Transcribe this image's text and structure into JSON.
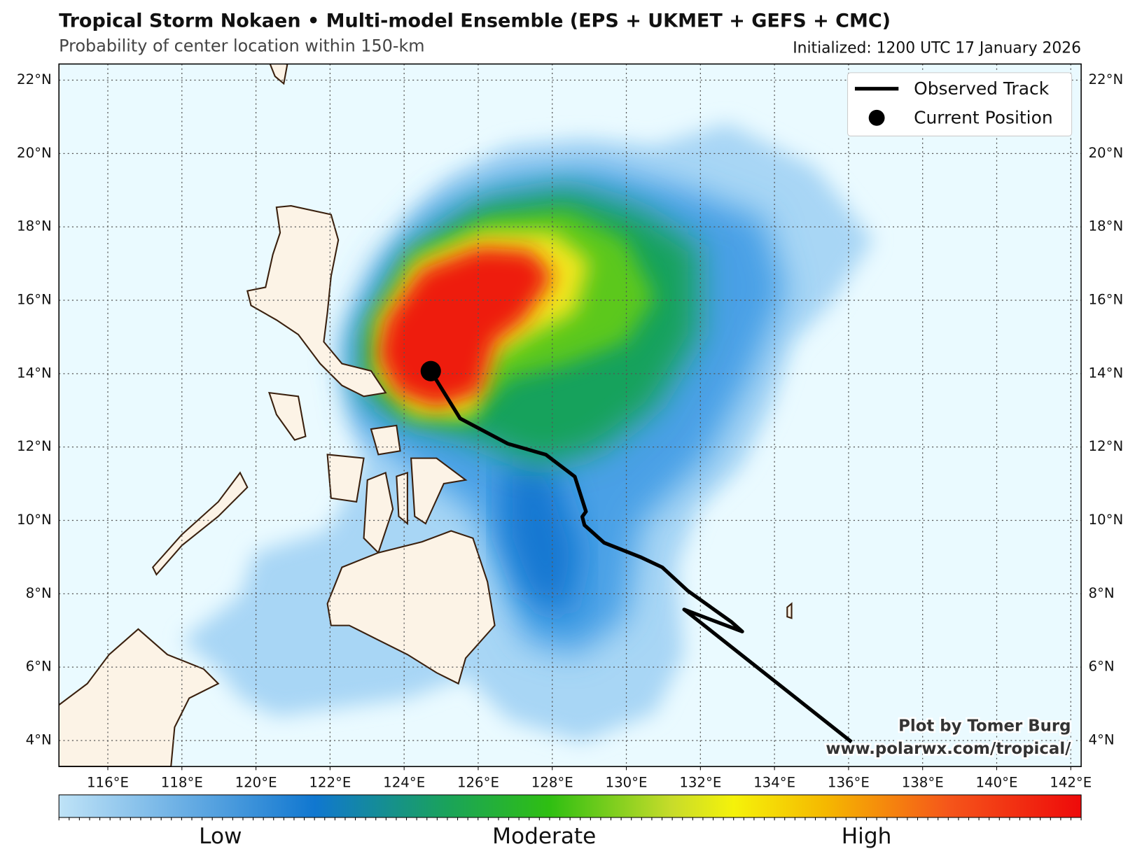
{
  "chart_data": {
    "type": "map",
    "title": "Tropical Storm Nokaen • Multi-model Ensemble (EPS + UKMET + GEFS + CMC)",
    "subtitle": "Probability of center location within 150-km",
    "initialized": "Initialized: 1200 UTC 17 January 2026",
    "xlim": [
      114.68,
      142.28
    ],
    "ylim": [
      3.29,
      22.44
    ],
    "grid": true,
    "xticks": [
      {
        "value": 116,
        "label": "116°E"
      },
      {
        "value": 118,
        "label": "118°E"
      },
      {
        "value": 120,
        "label": "120°E"
      },
      {
        "value": 122,
        "label": "122°E"
      },
      {
        "value": 124,
        "label": "124°E"
      },
      {
        "value": 126,
        "label": "126°E"
      },
      {
        "value": 128,
        "label": "128°E"
      },
      {
        "value": 130,
        "label": "130°E"
      },
      {
        "value": 132,
        "label": "132°E"
      },
      {
        "value": 134,
        "label": "134°E"
      },
      {
        "value": 136,
        "label": "136°E"
      },
      {
        "value": 138,
        "label": "138°E"
      },
      {
        "value": 140,
        "label": "140°E"
      },
      {
        "value": 142,
        "label": "142°E"
      }
    ],
    "yticks": [
      {
        "value": 4,
        "label": "4°N"
      },
      {
        "value": 6,
        "label": "6°N"
      },
      {
        "value": 8,
        "label": "8°N"
      },
      {
        "value": 10,
        "label": "10°N"
      },
      {
        "value": 12,
        "label": "12°N"
      },
      {
        "value": 14,
        "label": "14°N"
      },
      {
        "value": 16,
        "label": "16°N"
      },
      {
        "value": 18,
        "label": "18°N"
      },
      {
        "value": 20,
        "label": "20°N"
      },
      {
        "value": 22,
        "label": "22°N"
      }
    ],
    "series": [
      {
        "name": "Observed Track",
        "color": "#000000",
        "x": [
          136.08,
          131.56,
          133.13,
          132.84,
          131.66,
          130.97,
          130.38,
          129.4,
          128.87,
          128.81,
          128.91,
          128.61,
          127.83,
          126.8,
          125.51,
          124.72
        ],
        "values": [
          3.96,
          7.57,
          6.97,
          7.23,
          8.08,
          8.72,
          9.0,
          9.39,
          9.87,
          10.1,
          10.24,
          11.19,
          11.79,
          12.09,
          12.78,
          14.07
        ]
      }
    ],
    "current_position": {
      "name": "Current Position",
      "color": "#000000",
      "x": 124.72,
      "y": 14.07
    },
    "legend_position": "upper right",
    "credit": [
      "Plot by Tomer Burg",
      "www.polarwx.com/tropical/"
    ],
    "colorbar": {
      "labels": [
        "Low",
        "Moderate",
        "High"
      ]
    }
  }
}
